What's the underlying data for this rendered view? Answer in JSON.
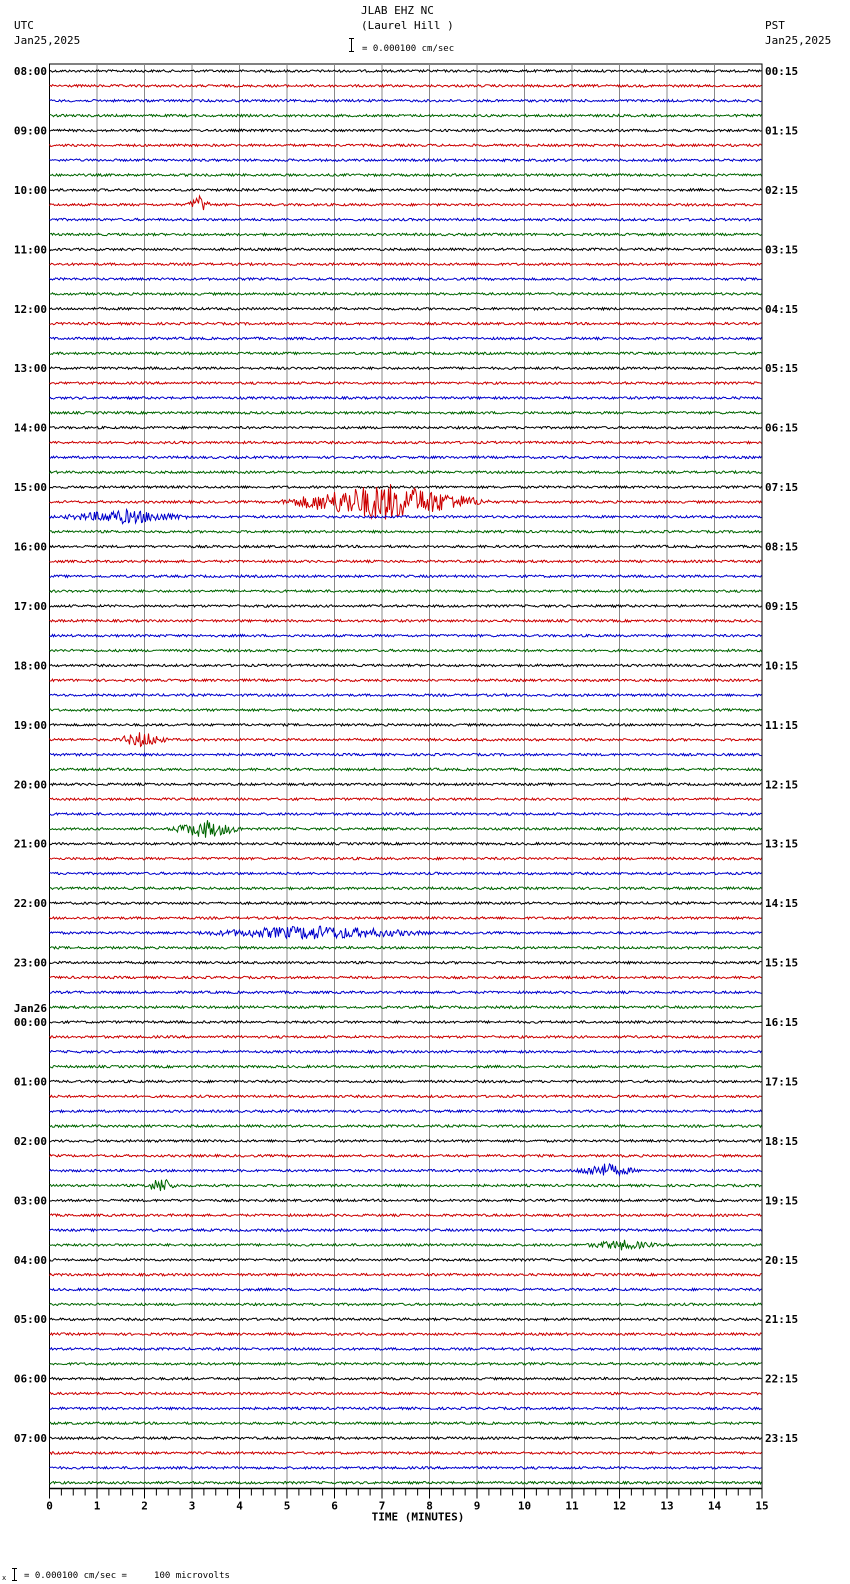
{
  "header": {
    "station": "JLAB EHZ NC",
    "location": "(Laurel Hill )",
    "left_tz": "UTC",
    "left_date": "Jan25,2025",
    "right_tz": "PST",
    "right_date": "Jan25,2025",
    "scale_text": "= 0.000100 cm/sec"
  },
  "footer": {
    "scale_text": "= 0.000100 cm/sec =     100 microvolts",
    "prefix": "x"
  },
  "colors": {
    "trace": [
      "#000000",
      "#cc0000",
      "#0000cc",
      "#006600"
    ],
    "grid": "#888888"
  },
  "chart_data": {
    "type": "line",
    "title": "JLAB EHZ NC (Laurel Hill )",
    "xlabel": "TIME (MINUTES)",
    "ylabel": "",
    "xlim": [
      0,
      15
    ],
    "x_ticks": [
      "0",
      "1",
      "2",
      "3",
      "4",
      "5",
      "6",
      "7",
      "8",
      "9",
      "10",
      "11",
      "12",
      "13",
      "14",
      "15"
    ],
    "grid": true,
    "traces_per_hour": 4,
    "left_labels": [
      "08:00",
      "09:00",
      "10:00",
      "11:00",
      "12:00",
      "13:00",
      "14:00",
      "15:00",
      "16:00",
      "17:00",
      "18:00",
      "19:00",
      "20:00",
      "21:00",
      "22:00",
      "23:00",
      "00:00",
      "01:00",
      "02:00",
      "03:00",
      "04:00",
      "05:00",
      "06:00",
      "07:00"
    ],
    "left_date_change": {
      "row_index": 16,
      "label": "Jan26"
    },
    "right_labels": [
      "00:15",
      "01:15",
      "02:15",
      "03:15",
      "04:15",
      "05:15",
      "06:15",
      "07:15",
      "08:15",
      "09:15",
      "10:15",
      "11:15",
      "12:15",
      "13:15",
      "14:15",
      "15:15",
      "16:15",
      "17:15",
      "18:15",
      "19:15",
      "20:15",
      "21:15",
      "22:15",
      "23:15"
    ],
    "events": [
      {
        "trace": 9,
        "minute_start": 2.9,
        "minute_end": 3.4,
        "amp": 8
      },
      {
        "trace": 29,
        "minute_start": 4.8,
        "minute_end": 9.3,
        "amp": 18
      },
      {
        "trace": 30,
        "minute_start": 0.2,
        "minute_end": 3.0,
        "amp": 6
      },
      {
        "trace": 45,
        "minute_start": 1.4,
        "minute_end": 2.5,
        "amp": 7
      },
      {
        "trace": 51,
        "minute_start": 2.5,
        "minute_end": 4.1,
        "amp": 8
      },
      {
        "trace": 58,
        "minute_start": 3.1,
        "minute_end": 8.0,
        "amp": 6
      },
      {
        "trace": 74,
        "minute_start": 11.0,
        "minute_end": 12.4,
        "amp": 6
      },
      {
        "trace": 75,
        "minute_start": 2.0,
        "minute_end": 2.7,
        "amp": 7
      },
      {
        "trace": 79,
        "minute_start": 11.3,
        "minute_end": 12.8,
        "amp": 4
      }
    ]
  }
}
